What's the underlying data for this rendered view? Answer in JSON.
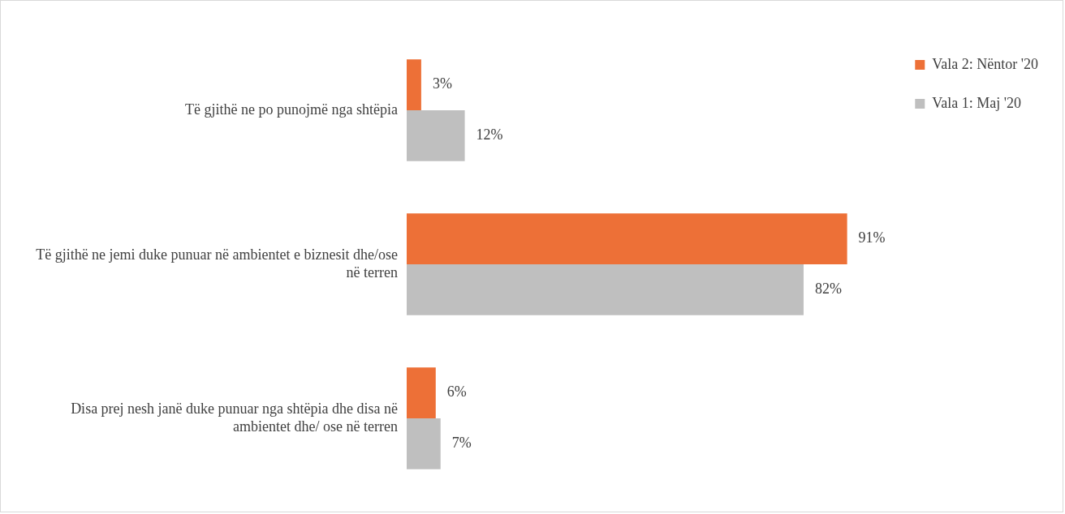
{
  "chart_data": {
    "type": "bar",
    "orientation": "horizontal",
    "legend": "top right",
    "categories": [
      "Të gjithë ne po punojmë nga shtëpia",
      "Të gjithë ne jemi duke punuar në ambientet e biznesit dhe/ose në terren",
      "Disa prej nesh janë duke punuar nga shtëpia dhe disa në ambientet dhe/ ose në terren"
    ],
    "series": [
      {
        "name": "Vala 2: Nëntor '20",
        "color": "#ed7037",
        "values": [
          3,
          91,
          6
        ],
        "value_labels": [
          "3%",
          "91%",
          "6%"
        ]
      },
      {
        "name": "Vala 1: Maj '20",
        "color": "#bfbfbf",
        "values": [
          12,
          82,
          7
        ],
        "value_labels": [
          "12%",
          "82%",
          "7%"
        ]
      }
    ]
  }
}
